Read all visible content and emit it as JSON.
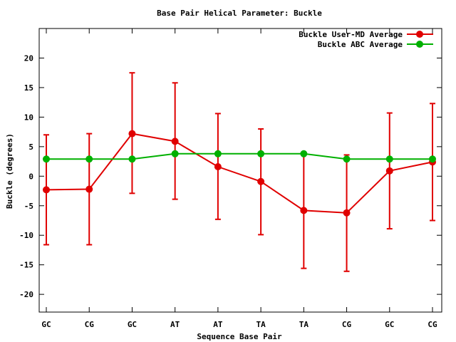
{
  "chart_data": {
    "type": "line",
    "title": "Base Pair Helical Parameter: Buckle",
    "xlabel": "Sequence Base Pair",
    "ylabel": "Buckle (degrees)",
    "categories": [
      "GC",
      "CG",
      "GC",
      "AT",
      "AT",
      "TA",
      "TA",
      "CG",
      "GC",
      "CG"
    ],
    "ylim": [
      -23,
      25
    ],
    "yticks": [
      -20,
      -15,
      -10,
      -5,
      0,
      5,
      10,
      15,
      20
    ],
    "grid": false,
    "legend_position": "top-right",
    "series": [
      {
        "name": "Buckle User-MD Average",
        "color": "#e00000",
        "values": [
          -2.3,
          -2.2,
          7.2,
          5.9,
          1.6,
          -0.9,
          -5.8,
          -6.2,
          0.9,
          2.4
        ],
        "err_upper": [
          7.0,
          7.2,
          17.5,
          15.8,
          10.6,
          8.0,
          3.9,
          3.6,
          10.7,
          12.3
        ],
        "err_lower": [
          -11.6,
          -11.6,
          -2.9,
          -3.9,
          -7.3,
          -9.9,
          -15.6,
          -16.1,
          -8.9,
          -7.5
        ]
      },
      {
        "name": "Buckle ABC Average",
        "color": "#00b000",
        "values": [
          2.9,
          2.9,
          2.9,
          3.8,
          3.8,
          3.8,
          3.8,
          2.9,
          2.9,
          2.9
        ]
      }
    ]
  }
}
